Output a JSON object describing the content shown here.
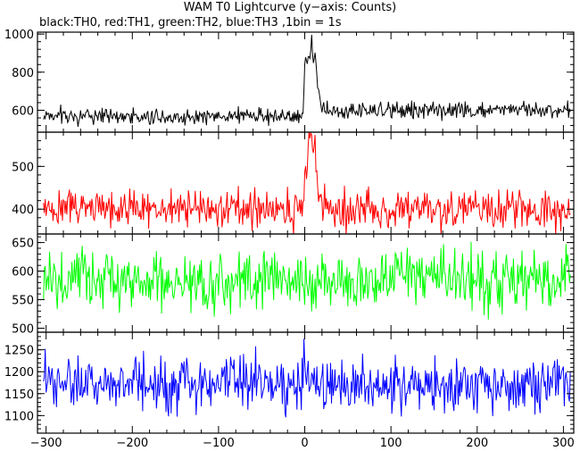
{
  "chart_data": {
    "type": "line",
    "title": "WAM T0 Lightcurve (y−axis: Counts)",
    "subtitle": "black:TH0, red:TH1, green:TH2, blue:TH3 ,1bin = 1s",
    "x_ticks": [
      -300,
      -200,
      -100,
      0,
      100,
      200,
      300
    ],
    "x_tick_labels": [
      "−300",
      "−200",
      "−100",
      "0",
      "100",
      "200",
      "300"
    ],
    "xlim": [
      -310,
      312
    ],
    "panels": [
      {
        "series": "TH0",
        "color": "#000000",
        "ylim": [
          485,
          1010
        ],
        "y_ticks": [
          600,
          800,
          1000
        ],
        "y_tick_labels": [
          "600",
          "800",
          "1000"
        ],
        "baseline_pre": 570,
        "baseline_post": 595,
        "noise": 28,
        "burst": [
          [
            -2,
            600
          ],
          [
            0,
            850
          ],
          [
            3,
            880
          ],
          [
            6,
            870
          ],
          [
            8,
            990
          ],
          [
            10,
            840
          ],
          [
            12,
            900
          ],
          [
            14,
            780
          ],
          [
            17,
            650
          ],
          [
            20,
            600
          ],
          [
            25,
            590
          ]
        ]
      },
      {
        "series": "TH1",
        "color": "#ff0000",
        "ylim": [
          342,
          580
        ],
        "y_ticks": [
          400,
          500
        ],
        "y_tick_labels": [
          "400",
          "500"
        ],
        "baseline_pre": 400,
        "baseline_post": 400,
        "noise": 28,
        "burst": [
          [
            -2,
            410
          ],
          [
            0,
            480
          ],
          [
            3,
            520
          ],
          [
            6,
            560
          ],
          [
            8,
            575
          ],
          [
            10,
            530
          ],
          [
            12,
            570
          ],
          [
            14,
            470
          ],
          [
            17,
            420
          ],
          [
            20,
            400
          ]
        ]
      },
      {
        "series": "TH2",
        "color": "#00ff00",
        "ylim": [
          493,
          665
        ],
        "y_ticks": [
          500,
          550,
          600,
          650
        ],
        "y_tick_labels": [
          "500",
          "550",
          "600",
          "650"
        ],
        "baseline_pre": 583,
        "baseline_post": 583,
        "noise": 32,
        "burst": []
      },
      {
        "series": "TH3",
        "color": "#0000ff",
        "ylim": [
          1060,
          1290
        ],
        "y_ticks": [
          1100,
          1150,
          1200,
          1250
        ],
        "y_tick_labels": [
          "1100",
          "1150",
          "1200",
          "1250"
        ],
        "baseline_pre": 1172,
        "baseline_post": 1168,
        "noise": 38,
        "burst": []
      }
    ]
  }
}
